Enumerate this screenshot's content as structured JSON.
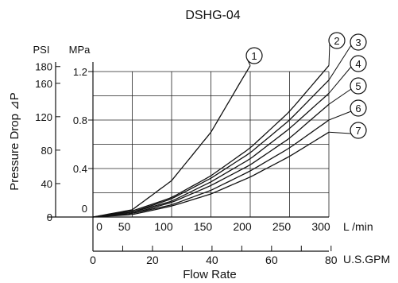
{
  "chart_data": {
    "type": "line",
    "title": "DSHG-04",
    "ylabel": "Pressure Drop ⊿P",
    "xlabel": "Flow Rate",
    "y_units": {
      "psi": "PSI",
      "mpa": "MPa"
    },
    "x_units": {
      "lmin": "L /min",
      "gpm": "U.S.GPM"
    },
    "psi_ticks": [
      "180",
      "160",
      "120",
      "80",
      "40",
      "0"
    ],
    "mpa_ticks": [
      "1.2",
      "0.8",
      "0.4",
      "0"
    ],
    "lmin_ticks": [
      "0",
      "50",
      "100",
      "150",
      "200",
      "250",
      "300"
    ],
    "gpm_ticks": [
      "0",
      "20",
      "40",
      "60",
      "80"
    ],
    "xlim": [
      0,
      300
    ],
    "ylim": [
      0,
      1.2
    ],
    "grid": true,
    "series": [
      {
        "name": "1",
        "x": [
          0,
          50,
          100,
          150,
          200
        ],
        "y": [
          0,
          0.06,
          0.3,
          0.7,
          1.25
        ]
      },
      {
        "name": "2",
        "x": [
          0,
          50,
          100,
          150,
          200,
          250,
          300
        ],
        "y": [
          0,
          0.05,
          0.16,
          0.34,
          0.57,
          0.87,
          1.25
        ]
      },
      {
        "name": "3",
        "x": [
          0,
          50,
          100,
          150,
          200,
          250,
          300
        ],
        "y": [
          0,
          0.04,
          0.15,
          0.32,
          0.53,
          0.8,
          1.13
        ]
      },
      {
        "name": "4",
        "x": [
          0,
          50,
          100,
          150,
          200,
          250,
          300
        ],
        "y": [
          0,
          0.04,
          0.13,
          0.29,
          0.48,
          0.73,
          1.02
        ]
      },
      {
        "name": "5",
        "x": [
          0,
          50,
          100,
          150,
          200,
          250,
          300
        ],
        "y": [
          0,
          0.03,
          0.12,
          0.26,
          0.43,
          0.65,
          0.93
        ]
      },
      {
        "name": "6",
        "x": [
          0,
          50,
          100,
          150,
          200,
          250,
          300
        ],
        "y": [
          0,
          0.03,
          0.1,
          0.22,
          0.38,
          0.57,
          0.8
        ]
      },
      {
        "name": "7",
        "x": [
          0,
          50,
          100,
          150,
          200,
          250,
          300
        ],
        "y": [
          0,
          0.02,
          0.09,
          0.19,
          0.33,
          0.5,
          0.7
        ]
      }
    ]
  }
}
